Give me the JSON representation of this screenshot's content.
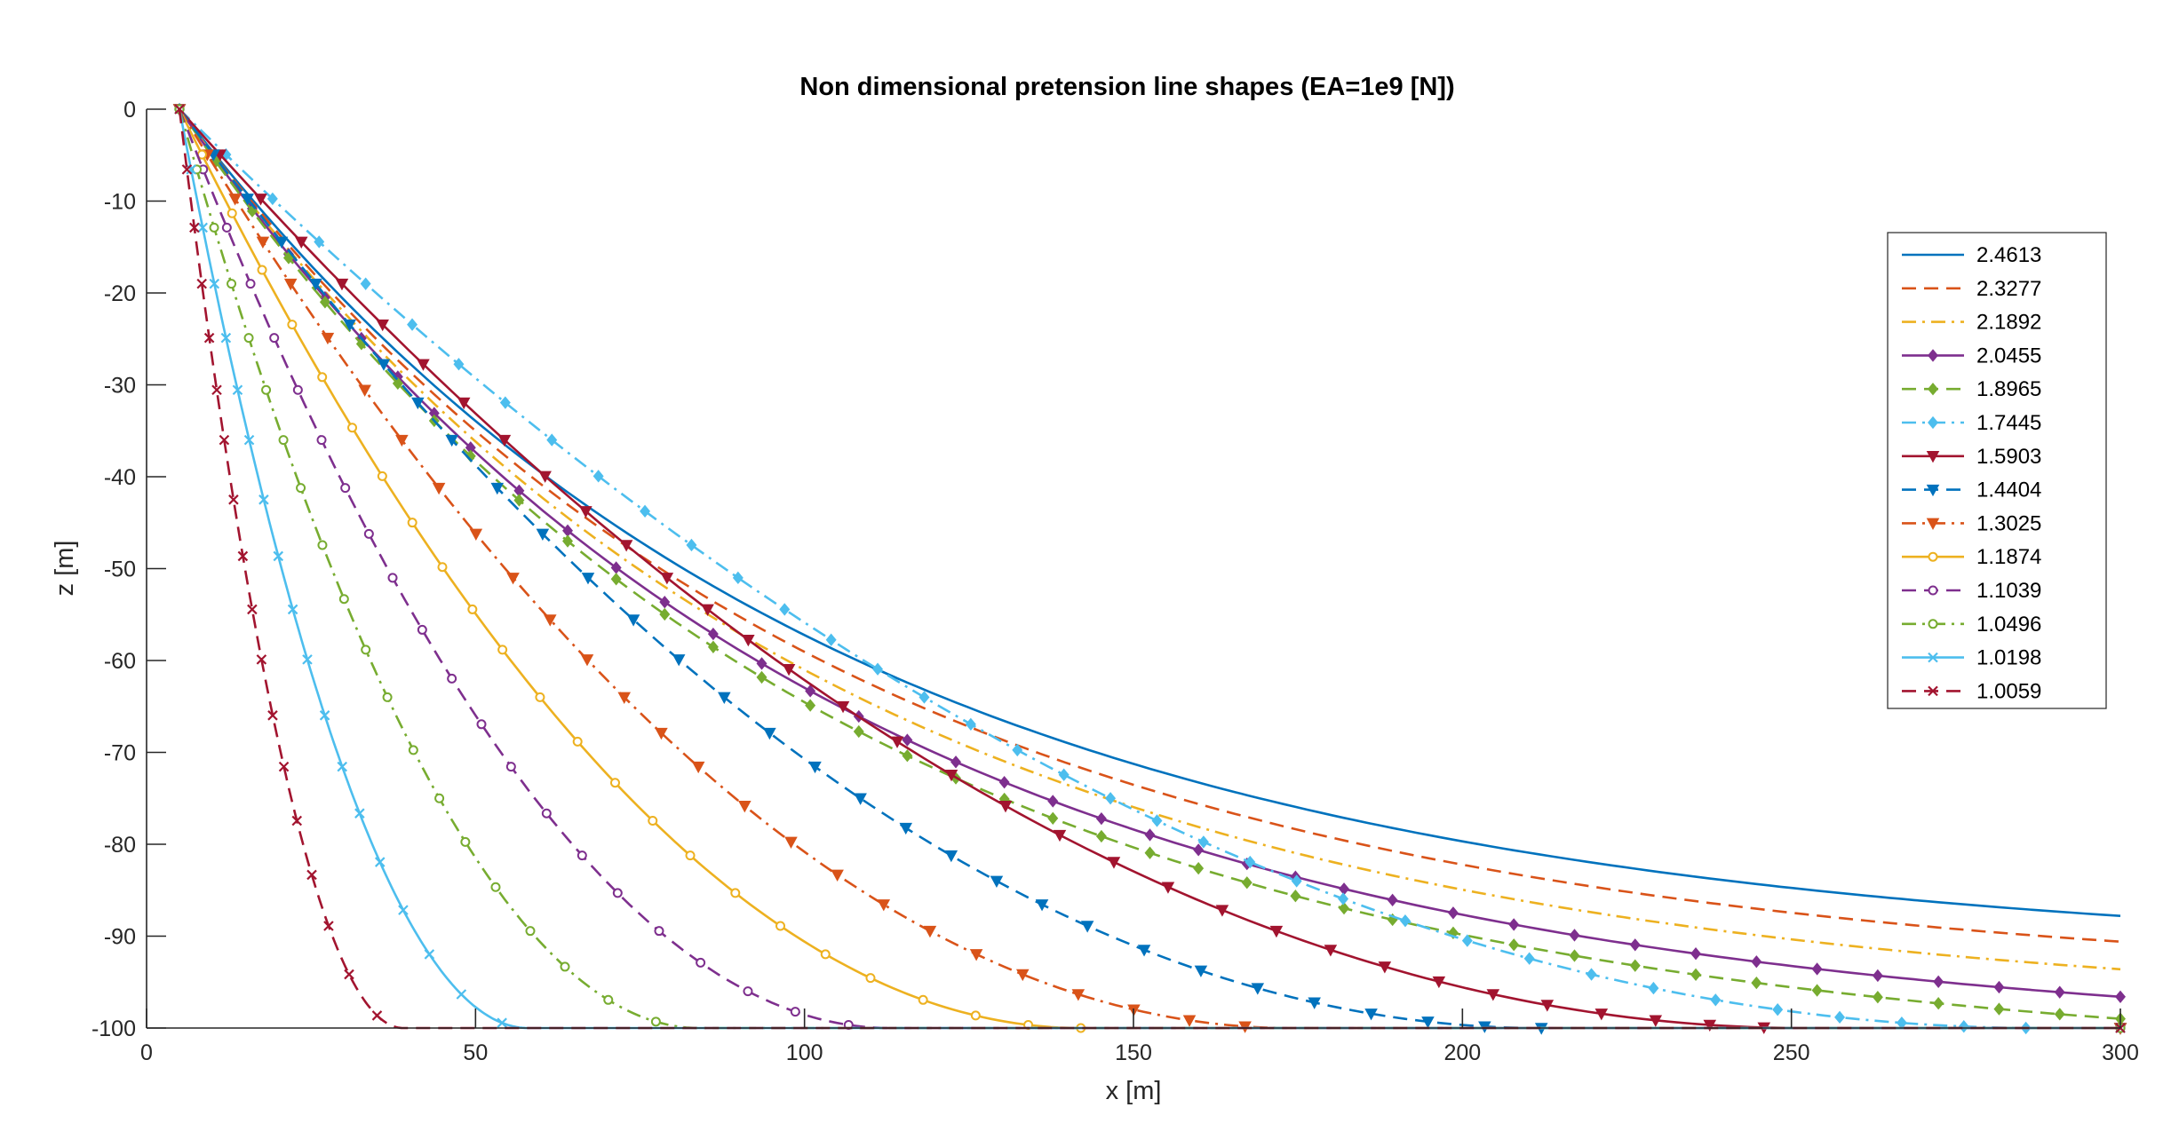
{
  "chart_data": {
    "type": "line",
    "title": "Non dimensional pretension line shapes (EA=1e9 [N])",
    "xlabel": "x [m]",
    "ylabel": "z [m]",
    "xlim": [
      0,
      300
    ],
    "ylim": [
      -100,
      0
    ],
    "xticks": [
      0,
      50,
      100,
      150,
      200,
      250,
      300
    ],
    "yticks": [
      0,
      -10,
      -20,
      -30,
      -40,
      -50,
      -60,
      -70,
      -80,
      -90,
      -100
    ],
    "xtick_labels": [
      "0",
      "50",
      "100",
      "150",
      "200",
      "250",
      "300"
    ],
    "ytick_labels": [
      "0",
      "-10",
      "-20",
      "-30",
      "-40",
      "-50",
      "-60",
      "-70",
      "-80",
      "-90",
      "-100"
    ],
    "grid": false,
    "legend_position": "top-right",
    "anchor": [
      5,
      0
    ],
    "seabed_z": -100,
    "series": [
      {
        "name": "2.4613",
        "color": "#0072BD",
        "dash": "solid",
        "marker": "none",
        "end_z": -87.8
      },
      {
        "name": "2.3277",
        "color": "#D95319",
        "dash": "dashed",
        "marker": "none",
        "end_z": -90.6
      },
      {
        "name": "2.1892",
        "color": "#EDB120",
        "dash": "dashdot",
        "marker": "none",
        "end_z": -93.6
      },
      {
        "name": "2.0455",
        "color": "#7E2F8E",
        "dash": "solid",
        "marker": "diamond",
        "end_z": -96.6
      },
      {
        "name": "1.8965",
        "color": "#77AC30",
        "dash": "dashed",
        "marker": "diamond",
        "end_z": -99.0
      },
      {
        "name": "1.7445",
        "color": "#4DBEEE",
        "dash": "dashdot",
        "marker": "diamond",
        "touchdown_x": 288
      },
      {
        "name": "1.5903",
        "color": "#A2142F",
        "dash": "solid",
        "marker": "triangle-down",
        "touchdown_x": 252
      },
      {
        "name": "1.4404",
        "color": "#0072BD",
        "dash": "dashed",
        "marker": "triangle-down",
        "touchdown_x": 212
      },
      {
        "name": "1.3025",
        "color": "#D95319",
        "dash": "dashdot",
        "marker": "triangle-down",
        "touchdown_x": 174
      },
      {
        "name": "1.1874",
        "color": "#EDB120",
        "dash": "solid",
        "marker": "circle",
        "touchdown_x": 142
      },
      {
        "name": "1.1039",
        "color": "#7E2F8E",
        "dash": "dashed",
        "marker": "circle",
        "touchdown_x": 113
      },
      {
        "name": "1.0496",
        "color": "#77AC30",
        "dash": "dashdot",
        "marker": "circle",
        "touchdown_x": 84
      },
      {
        "name": "1.0198",
        "color": "#4DBEEE",
        "dash": "solid",
        "marker": "x",
        "touchdown_x": 58
      },
      {
        "name": "1.0059",
        "color": "#A2142F",
        "dash": "dashed",
        "marker": "x",
        "touchdown_x": 39
      }
    ]
  }
}
